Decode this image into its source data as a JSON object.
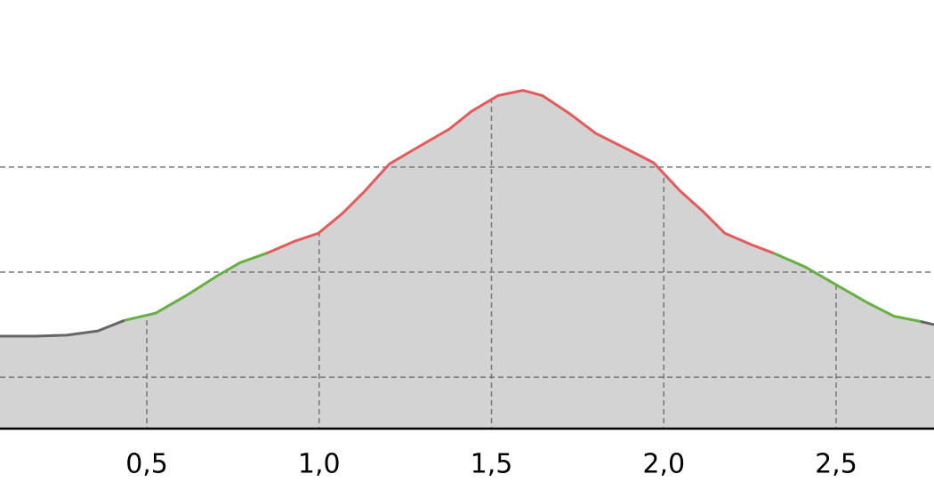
{
  "chart_data": {
    "type": "area",
    "xlim": [
      0.074,
      2.784
    ],
    "ylim": [
      51,
      459
    ],
    "xticks": [
      {
        "value": 0.5,
        "label": "0,5"
      },
      {
        "value": 1.0,
        "label": "1,0"
      },
      {
        "value": 1.5,
        "label": "1,5"
      },
      {
        "value": 2.0,
        "label": "2,0"
      },
      {
        "value": 2.5,
        "label": "2,5"
      }
    ],
    "yticks": [
      100,
      200,
      300
    ],
    "grid": true,
    "fill": "#d3d3d3",
    "series": [
      {
        "color": "#666666",
        "x": [
          0.074,
          0.177,
          0.268,
          0.358,
          0.435
        ],
        "values": [
          139,
          139,
          140,
          144,
          154
        ]
      },
      {
        "color": "#66b044",
        "x": [
          0.435,
          0.526,
          0.616,
          0.707,
          0.771,
          0.848
        ],
        "values": [
          154,
          161,
          178,
          197,
          209,
          218
        ]
      },
      {
        "color": "#e35b5b",
        "x": [
          0.848,
          0.926,
          0.998,
          1.068,
          1.132,
          1.204,
          1.287,
          1.377,
          1.442,
          1.519,
          1.591,
          1.648,
          1.726,
          1.803,
          1.906,
          1.971,
          2.048,
          2.113,
          2.177,
          2.255,
          2.319
        ],
        "values": [
          218,
          229,
          237,
          256,
          277,
          303,
          319,
          336,
          353,
          368,
          373,
          368,
          351,
          332,
          315,
          304,
          277,
          258,
          237,
          226,
          218
        ]
      },
      {
        "color": "#66b044",
        "x": [
          2.319,
          2.41,
          2.5,
          2.59,
          2.668,
          2.745
        ],
        "values": [
          218,
          205,
          188,
          171,
          158,
          153
        ]
      },
      {
        "color": "#666666",
        "x": [
          2.745,
          2.784
        ],
        "values": [
          153,
          150
        ]
      }
    ]
  }
}
